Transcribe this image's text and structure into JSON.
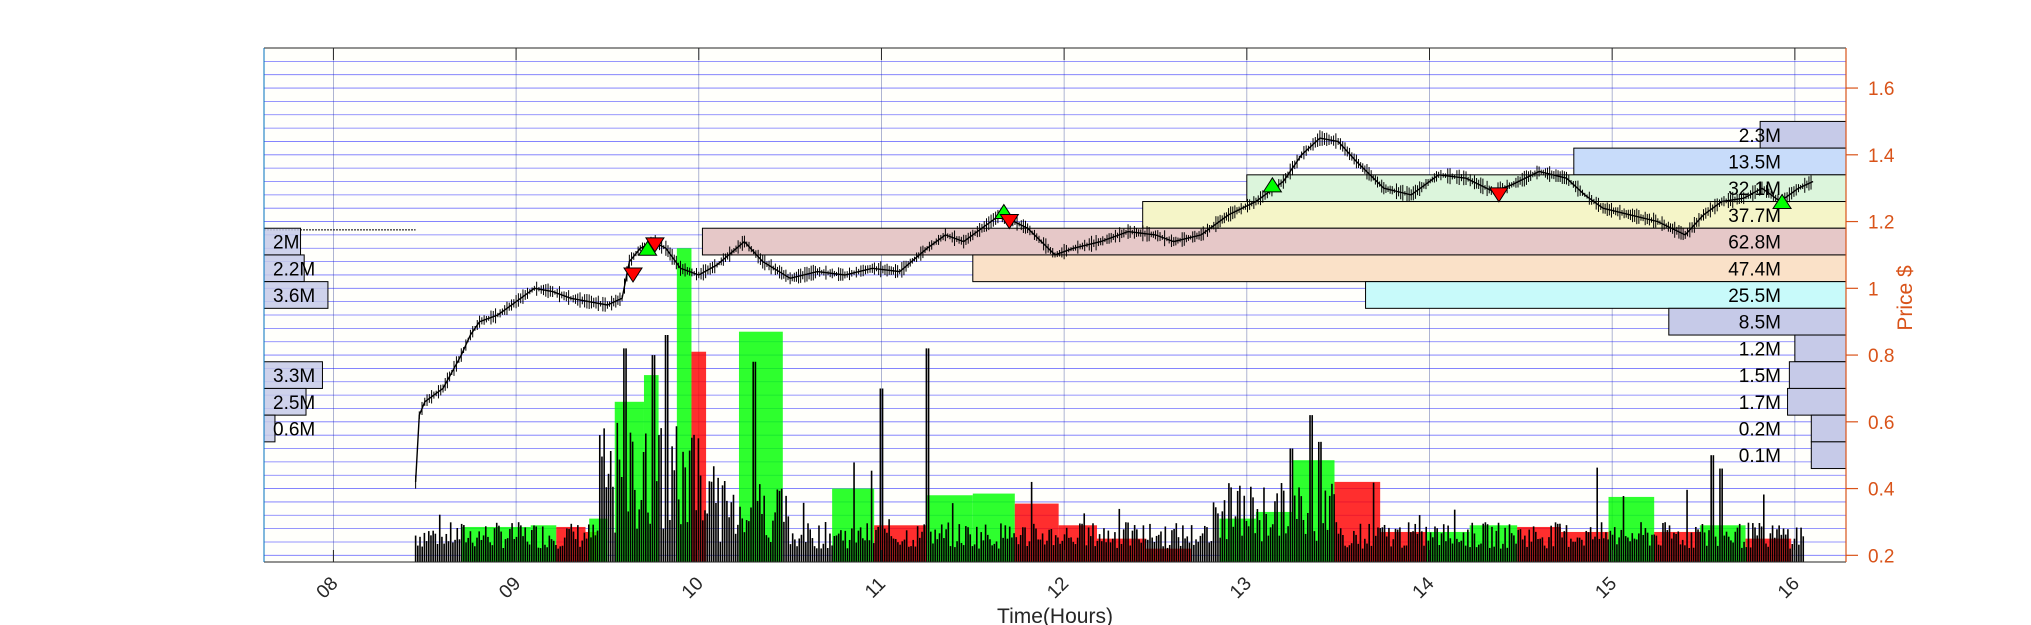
{
  "colors": {
    "price_axis": "#d95319",
    "grid_h": "#0000ff",
    "grid_v": "#9aa2c8",
    "up": "#00ff00",
    "down": "#ff0000",
    "candle": "#000000"
  },
  "chart_data": {
    "type": "price-volume",
    "title": "",
    "xlabel": "Time(Hours)",
    "ylabel": "Price $",
    "xlim": [
      7.62,
      16.28
    ],
    "ylim": [
      0.18,
      1.72
    ],
    "x_ticks": [
      {
        "v": 8,
        "label": "08"
      },
      {
        "v": 9,
        "label": "09"
      },
      {
        "v": 10,
        "label": "10"
      },
      {
        "v": 11,
        "label": "11"
      },
      {
        "v": 12,
        "label": "12"
      },
      {
        "v": 13,
        "label": "13"
      },
      {
        "v": 14,
        "label": "14"
      },
      {
        "v": 15,
        "label": "15"
      },
      {
        "v": 16,
        "label": "16"
      }
    ],
    "y_ticks": [
      0.2,
      0.4,
      0.6,
      0.8,
      1,
      1.2,
      1.4,
      1.6
    ],
    "y_tick_labels": [
      "0.2",
      "0.4",
      "0.6",
      "0.8",
      "1",
      "1.2",
      "1.4",
      "1.6"
    ],
    "price_path": [
      [
        8.45,
        0.42
      ],
      [
        8.47,
        0.62
      ],
      [
        8.5,
        0.66
      ],
      [
        8.55,
        0.68
      ],
      [
        8.6,
        0.7
      ],
      [
        8.66,
        0.76
      ],
      [
        8.7,
        0.8
      ],
      [
        8.75,
        0.86
      ],
      [
        8.8,
        0.9
      ],
      [
        8.9,
        0.92
      ],
      [
        9.0,
        0.96
      ],
      [
        9.1,
        1.0
      ],
      [
        9.2,
        0.99
      ],
      [
        9.3,
        0.97
      ],
      [
        9.4,
        0.96
      ],
      [
        9.5,
        0.95
      ],
      [
        9.58,
        0.97
      ],
      [
        9.62,
        1.08
      ],
      [
        9.68,
        1.12
      ],
      [
        9.75,
        1.14
      ],
      [
        9.82,
        1.12
      ],
      [
        9.9,
        1.06
      ],
      [
        10.0,
        1.04
      ],
      [
        10.1,
        1.07
      ],
      [
        10.25,
        1.14
      ],
      [
        10.35,
        1.08
      ],
      [
        10.5,
        1.03
      ],
      [
        10.65,
        1.05
      ],
      [
        10.8,
        1.04
      ],
      [
        10.95,
        1.06
      ],
      [
        11.1,
        1.05
      ],
      [
        11.25,
        1.12
      ],
      [
        11.35,
        1.16
      ],
      [
        11.45,
        1.14
      ],
      [
        11.55,
        1.18
      ],
      [
        11.65,
        1.22
      ],
      [
        11.8,
        1.18
      ],
      [
        11.95,
        1.1
      ],
      [
        12.05,
        1.12
      ],
      [
        12.2,
        1.14
      ],
      [
        12.35,
        1.17
      ],
      [
        12.5,
        1.16
      ],
      [
        12.6,
        1.14
      ],
      [
        12.75,
        1.16
      ],
      [
        12.9,
        1.22
      ],
      [
        13.05,
        1.26
      ],
      [
        13.2,
        1.32
      ],
      [
        13.3,
        1.4
      ],
      [
        13.4,
        1.45
      ],
      [
        13.5,
        1.44
      ],
      [
        13.6,
        1.38
      ],
      [
        13.75,
        1.3
      ],
      [
        13.9,
        1.28
      ],
      [
        14.05,
        1.34
      ],
      [
        14.2,
        1.33
      ],
      [
        14.35,
        1.29
      ],
      [
        14.45,
        1.31
      ],
      [
        14.6,
        1.35
      ],
      [
        14.75,
        1.33
      ],
      [
        14.85,
        1.28
      ],
      [
        14.95,
        1.24
      ],
      [
        15.1,
        1.22
      ],
      [
        15.25,
        1.2
      ],
      [
        15.4,
        1.16
      ],
      [
        15.5,
        1.22
      ],
      [
        15.6,
        1.26
      ],
      [
        15.72,
        1.27
      ],
      [
        15.82,
        1.3
      ],
      [
        15.92,
        1.26
      ],
      [
        16.02,
        1.3
      ],
      [
        16.1,
        1.32
      ]
    ],
    "previous_close_line": {
      "x_start": 7.62,
      "x_end": 8.45,
      "y": 1.175
    },
    "volume_blocks": [
      {
        "x0": 8.7,
        "x1": 9.08,
        "top": 0.285,
        "dir": "up"
      },
      {
        "x0": 9.08,
        "x1": 9.22,
        "top": 0.29,
        "dir": "up"
      },
      {
        "x0": 9.22,
        "x1": 9.38,
        "top": 0.285,
        "dir": "down"
      },
      {
        "x0": 9.38,
        "x1": 9.45,
        "top": 0.27,
        "dir": "down"
      },
      {
        "x0": 9.4,
        "x1": 9.5,
        "top": 0.31,
        "dir": "up"
      },
      {
        "x0": 9.54,
        "x1": 9.7,
        "top": 0.66,
        "dir": "up"
      },
      {
        "x0": 9.7,
        "x1": 9.78,
        "top": 0.74,
        "dir": "up"
      },
      {
        "x0": 9.88,
        "x1": 9.96,
        "top": 1.12,
        "dir": "up"
      },
      {
        "x0": 9.96,
        "x1": 10.04,
        "top": 0.81,
        "dir": "down"
      },
      {
        "x0": 10.22,
        "x1": 10.46,
        "top": 0.87,
        "dir": "up"
      },
      {
        "x0": 10.73,
        "x1": 10.96,
        "top": 0.4,
        "dir": "up"
      },
      {
        "x0": 10.96,
        "x1": 11.25,
        "top": 0.29,
        "dir": "down"
      },
      {
        "x0": 11.25,
        "x1": 11.5,
        "top": 0.38,
        "dir": "up"
      },
      {
        "x0": 11.5,
        "x1": 11.73,
        "top": 0.385,
        "dir": "up"
      },
      {
        "x0": 11.73,
        "x1": 11.97,
        "top": 0.355,
        "dir": "down"
      },
      {
        "x0": 11.97,
        "x1": 12.18,
        "top": 0.29,
        "dir": "down"
      },
      {
        "x0": 12.18,
        "x1": 12.45,
        "top": 0.25,
        "dir": "down"
      },
      {
        "x0": 12.45,
        "x1": 12.7,
        "top": 0.22,
        "dir": "down"
      },
      {
        "x0": 12.85,
        "x1": 13.05,
        "top": 0.31,
        "dir": "up"
      },
      {
        "x0": 13.05,
        "x1": 13.25,
        "top": 0.33,
        "dir": "up"
      },
      {
        "x0": 13.25,
        "x1": 13.48,
        "top": 0.485,
        "dir": "up"
      },
      {
        "x0": 13.48,
        "x1": 13.73,
        "top": 0.42,
        "dir": "down"
      },
      {
        "x0": 13.73,
        "x1": 13.98,
        "top": 0.27,
        "dir": "down"
      },
      {
        "x0": 13.98,
        "x1": 14.22,
        "top": 0.27,
        "dir": "up"
      },
      {
        "x0": 14.22,
        "x1": 14.48,
        "top": 0.29,
        "dir": "up"
      },
      {
        "x0": 14.48,
        "x1": 14.72,
        "top": 0.285,
        "dir": "down"
      },
      {
        "x0": 14.72,
        "x1": 14.98,
        "top": 0.27,
        "dir": "down"
      },
      {
        "x0": 14.98,
        "x1": 15.23,
        "top": 0.375,
        "dir": "up"
      },
      {
        "x0": 15.23,
        "x1": 15.48,
        "top": 0.27,
        "dir": "down"
      },
      {
        "x0": 15.48,
        "x1": 15.73,
        "top": 0.29,
        "dir": "up"
      },
      {
        "x0": 15.73,
        "x1": 15.98,
        "top": 0.25,
        "dir": "down"
      }
    ],
    "trade_signals": [
      {
        "x": 9.64,
        "price": 1.04,
        "dir": "down"
      },
      {
        "x": 9.72,
        "price": 1.12,
        "dir": "up"
      },
      {
        "x": 9.76,
        "price": 1.13,
        "dir": "down"
      },
      {
        "x": 11.67,
        "price": 1.23,
        "dir": "up"
      },
      {
        "x": 11.7,
        "price": 1.2,
        "dir": "down"
      },
      {
        "x": 13.14,
        "price": 1.31,
        "dir": "up"
      },
      {
        "x": 14.38,
        "price": 1.28,
        "dir": "down"
      },
      {
        "x": 15.93,
        "price": 1.26,
        "dir": "up"
      }
    ],
    "volume_profile_right": [
      {
        "label": "2.3M",
        "top": 1.5,
        "bottom": 1.42,
        "x0": 15.81,
        "color": "#c6cae8"
      },
      {
        "label": "13.5M",
        "top": 1.42,
        "bottom": 1.34,
        "x0": 14.79,
        "color": "#c8dcfa"
      },
      {
        "label": "32.1M",
        "top": 1.34,
        "bottom": 1.26,
        "x0": 13.0,
        "color": "#dcf5dc"
      },
      {
        "label": "37.7M",
        "top": 1.26,
        "bottom": 1.18,
        "x0": 12.43,
        "color": "#f5f5c8"
      },
      {
        "label": "62.8M",
        "top": 1.18,
        "bottom": 1.1,
        "x0": 10.02,
        "color": "#e6c8c8"
      },
      {
        "label": "47.4M",
        "top": 1.1,
        "bottom": 1.02,
        "x0": 11.5,
        "color": "#fae1c8"
      },
      {
        "label": "25.5M",
        "top": 1.02,
        "bottom": 0.94,
        "x0": 13.65,
        "color": "#c8fafa"
      },
      {
        "label": "8.5M",
        "top": 0.94,
        "bottom": 0.86,
        "x0": 15.31,
        "color": "#c6cae8"
      },
      {
        "label": "1.2M",
        "top": 0.86,
        "bottom": 0.78,
        "x0": 16.0,
        "color": "#c6cae8"
      },
      {
        "label": "1.5M",
        "top": 0.78,
        "bottom": 0.7,
        "x0": 15.97,
        "color": "#c6cae8"
      },
      {
        "label": "1.7M",
        "top": 0.7,
        "bottom": 0.62,
        "x0": 15.96,
        "color": "#c6cae8"
      },
      {
        "label": "0.2M",
        "top": 0.62,
        "bottom": 0.54,
        "x0": 16.09,
        "color": "#c6cae8"
      },
      {
        "label": "0.1M",
        "top": 0.54,
        "bottom": 0.46,
        "x0": 16.09,
        "color": "#c6cae8"
      }
    ],
    "volume_profile_left": [
      {
        "label": "2M",
        "top": 1.18,
        "bottom": 1.1,
        "x1": 7.82
      },
      {
        "label": "2.2M",
        "top": 1.1,
        "bottom": 1.02,
        "x1": 7.84
      },
      {
        "label": "3.6M",
        "top": 1.02,
        "bottom": 0.94,
        "x1": 7.97
      },
      {
        "label": "3.3M",
        "top": 0.78,
        "bottom": 0.7,
        "x1": 7.94
      },
      {
        "label": "2.5M",
        "top": 0.7,
        "bottom": 0.62,
        "x1": 7.85
      },
      {
        "label": "0.6M",
        "top": 0.62,
        "bottom": 0.54,
        "x1": 7.68
      }
    ]
  }
}
